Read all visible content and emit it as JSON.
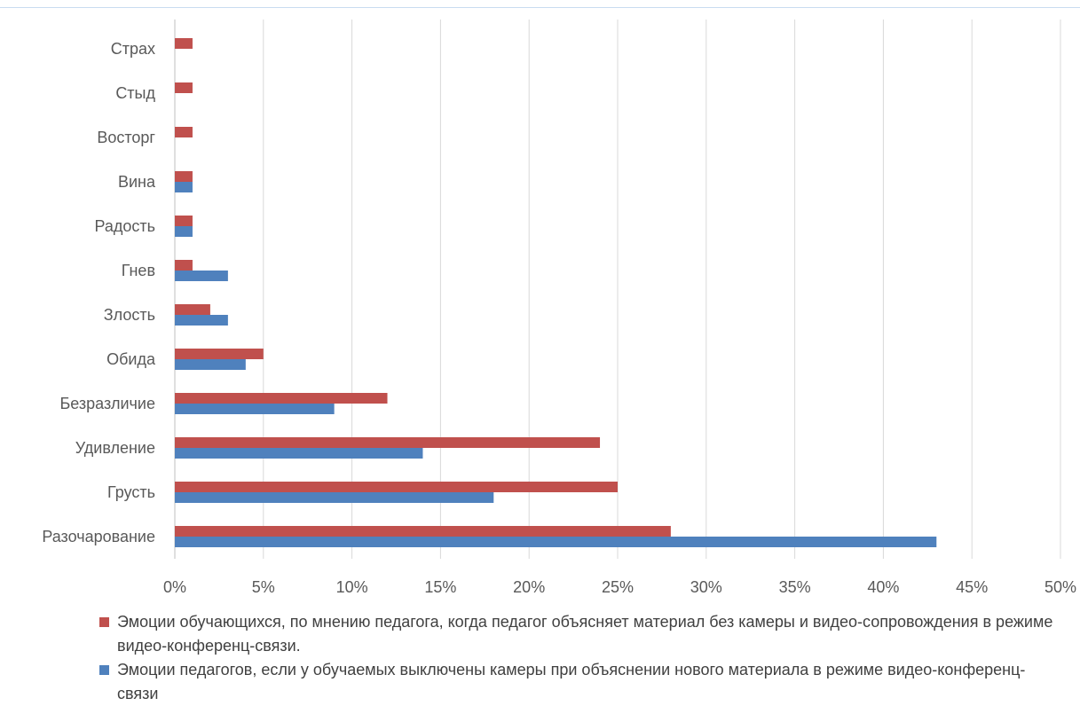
{
  "chart_data": {
    "type": "bar",
    "orientation": "horizontal",
    "categories": [
      "Страх",
      "Стыд",
      "Восторг",
      "Вина",
      "Радость",
      "Гнев",
      "Злость",
      "Обида",
      "Безразличие",
      "Удивление",
      "Грусть",
      "Разочарование"
    ],
    "series": [
      {
        "name": "Эмоции обучающихся, по мнению педагога, когда педагог объясняет материал без камеры и видео-сопровождения в режиме видео-конференц-связи.",
        "color": "#c0504d",
        "values": [
          1,
          1,
          1,
          1,
          1,
          1,
          2,
          5,
          12,
          24,
          25,
          28
        ]
      },
      {
        "name": "Эмоции педагогов, если у обучаемых выключены камеры при объяснении нового материала в режиме видео-конференц-связи",
        "color": "#4f81bd",
        "values": [
          0,
          0,
          0,
          1,
          1,
          3,
          3,
          4,
          9,
          14,
          18,
          43
        ]
      }
    ],
    "xlim": [
      0,
      50
    ],
    "x_ticks": [
      "0%",
      "5%",
      "10%",
      "15%",
      "20%",
      "25%",
      "30%",
      "35%",
      "40%",
      "45%",
      "50%"
    ],
    "grid": true,
    "legend_position": "bottom"
  }
}
